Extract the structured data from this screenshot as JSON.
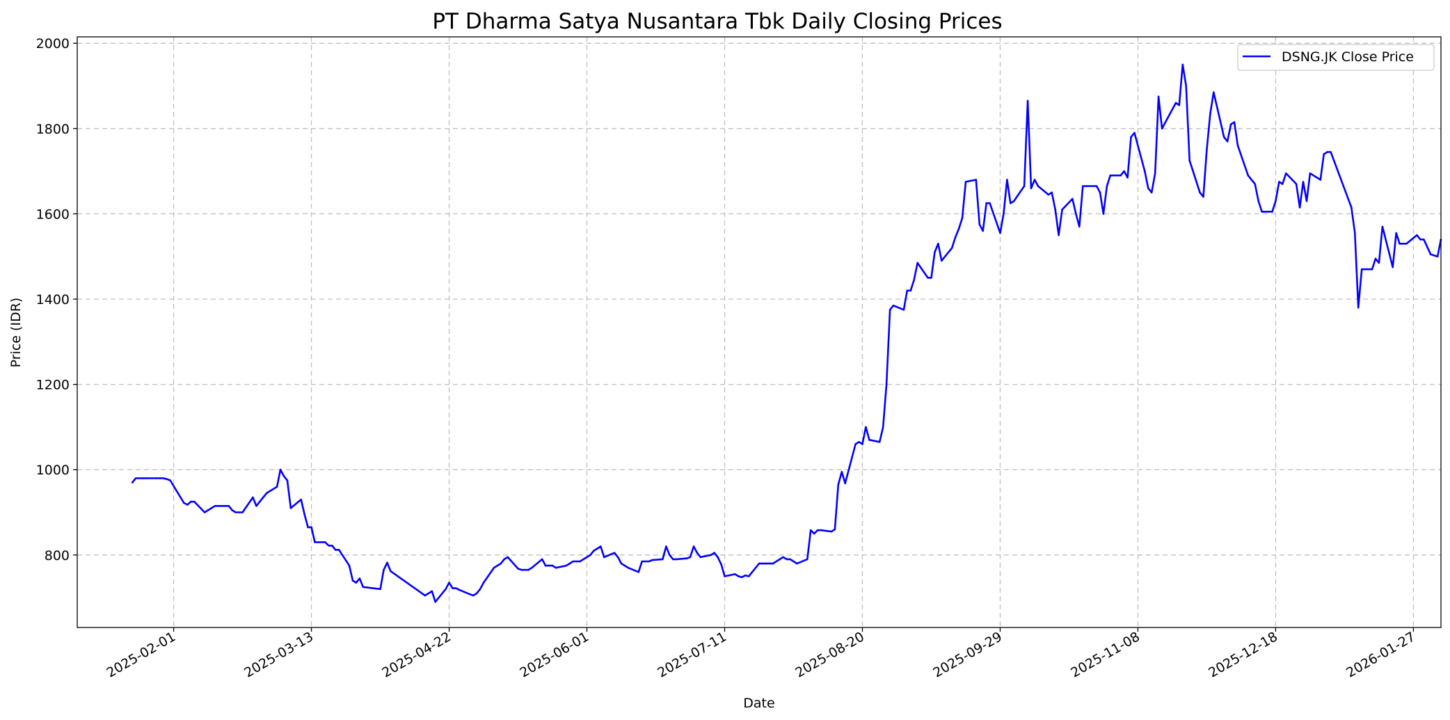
{
  "chart_data": {
    "type": "line",
    "title": "PT Dharma Satya Nusantara Tbk Daily Closing Prices",
    "xlabel": "Date",
    "ylabel": "Price (IDR)",
    "xlim": [
      "2025-01-04",
      "2026-02-04"
    ],
    "ylim": [
      630,
      2015
    ],
    "grid": true,
    "legend_position": "top-right",
    "color": "#0000ff",
    "x_ticks": [
      "2025-02-01",
      "2025-03-13",
      "2025-04-22",
      "2025-06-01",
      "2025-07-11",
      "2025-08-20",
      "2025-09-29",
      "2025-11-08",
      "2025-12-18",
      "2026-01-27"
    ],
    "y_ticks": [
      800,
      1000,
      1200,
      1400,
      1600,
      1800,
      2000
    ],
    "series": [
      {
        "name": "DSNG.JK Close Price",
        "points": [
          [
            "2025-01-20",
            970
          ],
          [
            "2025-01-21",
            980
          ],
          [
            "2025-01-22",
            980
          ],
          [
            "2025-01-23",
            980
          ],
          [
            "2025-01-24",
            980
          ],
          [
            "2025-01-27",
            980
          ],
          [
            "2025-01-28",
            980
          ],
          [
            "2025-01-29",
            980
          ],
          [
            "2025-01-30",
            978
          ],
          [
            "2025-01-31",
            975
          ],
          [
            "2025-02-03",
            935
          ],
          [
            "2025-02-04",
            922
          ],
          [
            "2025-02-05",
            918
          ],
          [
            "2025-02-06",
            925
          ],
          [
            "2025-02-07",
            925
          ],
          [
            "2025-02-10",
            900
          ],
          [
            "2025-02-11",
            905
          ],
          [
            "2025-02-12",
            910
          ],
          [
            "2025-02-13",
            915
          ],
          [
            "2025-02-14",
            915
          ],
          [
            "2025-02-17",
            915
          ],
          [
            "2025-02-18",
            905
          ],
          [
            "2025-02-19",
            900
          ],
          [
            "2025-02-20",
            900
          ],
          [
            "2025-02-21",
            900
          ],
          [
            "2025-02-24",
            935
          ],
          [
            "2025-02-25",
            915
          ],
          [
            "2025-02-26",
            925
          ],
          [
            "2025-02-27",
            935
          ],
          [
            "2025-02-28",
            945
          ],
          [
            "2025-03-03",
            960
          ],
          [
            "2025-03-04",
            1000
          ],
          [
            "2025-03-05",
            985
          ],
          [
            "2025-03-06",
            975
          ],
          [
            "2025-03-07",
            910
          ],
          [
            "2025-03-10",
            930
          ],
          [
            "2025-03-11",
            895
          ],
          [
            "2025-03-12",
            865
          ],
          [
            "2025-03-13",
            865
          ],
          [
            "2025-03-14",
            830
          ],
          [
            "2025-03-17",
            830
          ],
          [
            "2025-03-18",
            822
          ],
          [
            "2025-03-19",
            822
          ],
          [
            "2025-03-20",
            812
          ],
          [
            "2025-03-21",
            812
          ],
          [
            "2025-03-24",
            775
          ],
          [
            "2025-03-25",
            740
          ],
          [
            "2025-03-26",
            735
          ],
          [
            "2025-03-27",
            745
          ],
          [
            "2025-03-28",
            725
          ],
          [
            "2025-04-02",
            720
          ],
          [
            "2025-04-03",
            765
          ],
          [
            "2025-04-04",
            782
          ],
          [
            "2025-04-05",
            762
          ],
          [
            "2025-04-15",
            705
          ],
          [
            "2025-04-16",
            710
          ],
          [
            "2025-04-17",
            715
          ],
          [
            "2025-04-18",
            690
          ],
          [
            "2025-04-21",
            720
          ],
          [
            "2025-04-22",
            735
          ],
          [
            "2025-04-23",
            722
          ],
          [
            "2025-04-24",
            722
          ],
          [
            "2025-04-25",
            718
          ],
          [
            "2025-04-28",
            708
          ],
          [
            "2025-04-29",
            705
          ],
          [
            "2025-04-30",
            710
          ],
          [
            "2025-05-01",
            720
          ],
          [
            "2025-05-02",
            735
          ],
          [
            "2025-05-05",
            770
          ],
          [
            "2025-05-06",
            775
          ],
          [
            "2025-05-07",
            780
          ],
          [
            "2025-05-08",
            790
          ],
          [
            "2025-05-09",
            795
          ],
          [
            "2025-05-12",
            768
          ],
          [
            "2025-05-13",
            765
          ],
          [
            "2025-05-14",
            765
          ],
          [
            "2025-05-15",
            765
          ],
          [
            "2025-05-16",
            770
          ],
          [
            "2025-05-19",
            790
          ],
          [
            "2025-05-20",
            775
          ],
          [
            "2025-05-21",
            775
          ],
          [
            "2025-05-22",
            775
          ],
          [
            "2025-05-23",
            770
          ],
          [
            "2025-05-26",
            775
          ],
          [
            "2025-05-27",
            780
          ],
          [
            "2025-05-28",
            785
          ],
          [
            "2025-05-29",
            785
          ],
          [
            "2025-05-30",
            785
          ],
          [
            "2025-06-02",
            800
          ],
          [
            "2025-06-03",
            810
          ],
          [
            "2025-06-04",
            815
          ],
          [
            "2025-06-05",
            820
          ],
          [
            "2025-06-06",
            795
          ],
          [
            "2025-06-09",
            805
          ],
          [
            "2025-06-10",
            795
          ],
          [
            "2025-06-11",
            780
          ],
          [
            "2025-06-12",
            775
          ],
          [
            "2025-06-13",
            770
          ],
          [
            "2025-06-16",
            760
          ],
          [
            "2025-06-17",
            785
          ],
          [
            "2025-06-18",
            785
          ],
          [
            "2025-06-19",
            785
          ],
          [
            "2025-06-20",
            788
          ],
          [
            "2025-06-23",
            790
          ],
          [
            "2025-06-24",
            820
          ],
          [
            "2025-06-25",
            800
          ],
          [
            "2025-06-26",
            790
          ],
          [
            "2025-06-27",
            790
          ],
          [
            "2025-06-30",
            792
          ],
          [
            "2025-07-01",
            795
          ],
          [
            "2025-07-02",
            820
          ],
          [
            "2025-07-03",
            805
          ],
          [
            "2025-07-04",
            795
          ],
          [
            "2025-07-07",
            800
          ],
          [
            "2025-07-08",
            805
          ],
          [
            "2025-07-09",
            795
          ],
          [
            "2025-07-10",
            778
          ],
          [
            "2025-07-11",
            750
          ],
          [
            "2025-07-14",
            755
          ],
          [
            "2025-07-15",
            750
          ],
          [
            "2025-07-16",
            748
          ],
          [
            "2025-07-17",
            752
          ],
          [
            "2025-07-18",
            750
          ],
          [
            "2025-07-21",
            780
          ],
          [
            "2025-07-22",
            780
          ],
          [
            "2025-07-23",
            780
          ],
          [
            "2025-07-24",
            780
          ],
          [
            "2025-07-25",
            780
          ],
          [
            "2025-07-28",
            795
          ],
          [
            "2025-07-29",
            790
          ],
          [
            "2025-07-30",
            790
          ],
          [
            "2025-07-31",
            785
          ],
          [
            "2025-08-01",
            780
          ],
          [
            "2025-08-04",
            790
          ],
          [
            "2025-08-05",
            858
          ],
          [
            "2025-08-06",
            850
          ],
          [
            "2025-08-07",
            858
          ],
          [
            "2025-08-08",
            858
          ],
          [
            "2025-08-11",
            855
          ],
          [
            "2025-08-12",
            860
          ],
          [
            "2025-08-13",
            965
          ],
          [
            "2025-08-14",
            995
          ],
          [
            "2025-08-15",
            968
          ],
          [
            "2025-08-18",
            1060
          ],
          [
            "2025-08-19",
            1065
          ],
          [
            "2025-08-20",
            1060
          ],
          [
            "2025-08-21",
            1100
          ],
          [
            "2025-08-22",
            1070
          ],
          [
            "2025-08-25",
            1065
          ],
          [
            "2025-08-26",
            1100
          ],
          [
            "2025-08-27",
            1200
          ],
          [
            "2025-08-28",
            1375
          ],
          [
            "2025-08-29",
            1385
          ],
          [
            "2025-09-01",
            1375
          ],
          [
            "2025-09-02",
            1420
          ],
          [
            "2025-09-03",
            1420
          ],
          [
            "2025-09-04",
            1445
          ],
          [
            "2025-09-05",
            1485
          ],
          [
            "2025-09-08",
            1450
          ],
          [
            "2025-09-09",
            1450
          ],
          [
            "2025-09-10",
            1510
          ],
          [
            "2025-09-11",
            1530
          ],
          [
            "2025-09-12",
            1490
          ],
          [
            "2025-09-15",
            1520
          ],
          [
            "2025-09-16",
            1545
          ],
          [
            "2025-09-17",
            1565
          ],
          [
            "2025-09-18",
            1590
          ],
          [
            "2025-09-19",
            1675
          ],
          [
            "2025-09-22",
            1680
          ],
          [
            "2025-09-23",
            1575
          ],
          [
            "2025-09-24",
            1560
          ],
          [
            "2025-09-25",
            1625
          ],
          [
            "2025-09-26",
            1625
          ],
          [
            "2025-09-29",
            1555
          ],
          [
            "2025-09-30",
            1600
          ],
          [
            "2025-10-01",
            1680
          ],
          [
            "2025-10-02",
            1625
          ],
          [
            "2025-10-03",
            1630
          ],
          [
            "2025-10-06",
            1665
          ],
          [
            "2025-10-07",
            1865
          ],
          [
            "2025-10-08",
            1660
          ],
          [
            "2025-10-09",
            1680
          ],
          [
            "2025-10-10",
            1665
          ],
          [
            "2025-10-13",
            1645
          ],
          [
            "2025-10-14",
            1650
          ],
          [
            "2025-10-15",
            1610
          ],
          [
            "2025-10-16",
            1550
          ],
          [
            "2025-10-17",
            1610
          ],
          [
            "2025-10-20",
            1635
          ],
          [
            "2025-10-21",
            1600
          ],
          [
            "2025-10-22",
            1570
          ],
          [
            "2025-10-23",
            1665
          ],
          [
            "2025-10-24",
            1665
          ],
          [
            "2025-10-27",
            1665
          ],
          [
            "2025-10-28",
            1650
          ],
          [
            "2025-10-29",
            1600
          ],
          [
            "2025-10-30",
            1665
          ],
          [
            "2025-10-31",
            1690
          ],
          [
            "2025-11-03",
            1690
          ],
          [
            "2025-11-04",
            1700
          ],
          [
            "2025-11-05",
            1685
          ],
          [
            "2025-11-06",
            1780
          ],
          [
            "2025-11-07",
            1790
          ],
          [
            "2025-11-10",
            1700
          ],
          [
            "2025-11-11",
            1660
          ],
          [
            "2025-11-12",
            1650
          ],
          [
            "2025-11-13",
            1695
          ],
          [
            "2025-11-14",
            1875
          ],
          [
            "2025-11-15",
            1800
          ],
          [
            "2025-11-19",
            1860
          ],
          [
            "2025-11-20",
            1855
          ],
          [
            "2025-11-21",
            1950
          ],
          [
            "2025-11-22",
            1900
          ],
          [
            "2025-11-23",
            1725
          ],
          [
            "2025-11-26",
            1650
          ],
          [
            "2025-11-27",
            1640
          ],
          [
            "2025-11-28",
            1750
          ],
          [
            "2025-11-29",
            1835
          ],
          [
            "2025-11-30",
            1885
          ],
          [
            "2025-12-03",
            1780
          ],
          [
            "2025-12-04",
            1770
          ],
          [
            "2025-12-05",
            1810
          ],
          [
            "2025-12-06",
            1815
          ],
          [
            "2025-12-07",
            1760
          ],
          [
            "2025-12-10",
            1690
          ],
          [
            "2025-12-12",
            1670
          ],
          [
            "2025-12-13",
            1630
          ],
          [
            "2025-12-14",
            1605
          ],
          [
            "2025-12-17",
            1605
          ],
          [
            "2025-12-18",
            1630
          ],
          [
            "2025-12-19",
            1675
          ],
          [
            "2025-12-20",
            1670
          ],
          [
            "2025-12-21",
            1695
          ],
          [
            "2025-12-24",
            1670
          ],
          [
            "2025-12-25",
            1615
          ],
          [
            "2025-12-26",
            1675
          ],
          [
            "2025-12-27",
            1630
          ],
          [
            "2025-12-28",
            1695
          ],
          [
            "2025-12-31",
            1680
          ],
          [
            "2026-01-01",
            1740
          ],
          [
            "2026-01-02",
            1745
          ],
          [
            "2026-01-03",
            1745
          ],
          [
            "2026-01-09",
            1615
          ],
          [
            "2026-01-10",
            1555
          ],
          [
            "2026-01-11",
            1380
          ],
          [
            "2026-01-12",
            1470
          ],
          [
            "2026-01-15",
            1470
          ],
          [
            "2026-01-16",
            1495
          ],
          [
            "2026-01-17",
            1485
          ],
          [
            "2026-01-18",
            1570
          ],
          [
            "2026-01-21",
            1475
          ],
          [
            "2026-01-22",
            1555
          ],
          [
            "2026-01-23",
            1530
          ],
          [
            "2026-01-25",
            1530
          ],
          [
            "2026-01-28",
            1550
          ],
          [
            "2026-01-29",
            1540
          ],
          [
            "2026-01-30",
            1540
          ],
          [
            "2026-02-01",
            1505
          ],
          [
            "2026-02-03",
            1500
          ],
          [
            "2026-02-04",
            1540
          ]
        ]
      }
    ]
  }
}
